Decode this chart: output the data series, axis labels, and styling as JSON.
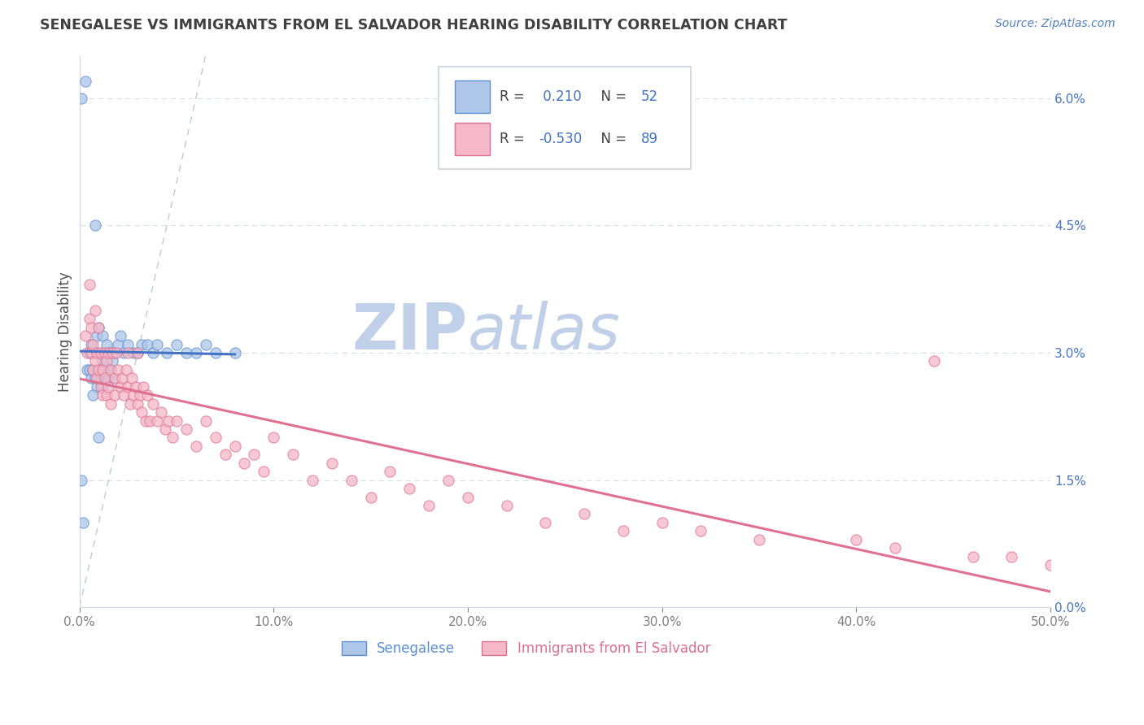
{
  "title": "SENEGALESE VS IMMIGRANTS FROM EL SALVADOR HEARING DISABILITY CORRELATION CHART",
  "source": "Source: ZipAtlas.com",
  "ylabel": "Hearing Disability",
  "xlim": [
    0.0,
    0.5
  ],
  "ylim": [
    0.0,
    0.065
  ],
  "xticklabels": [
    "0.0%",
    "10.0%",
    "20.0%",
    "30.0%",
    "40.0%",
    "50.0%"
  ],
  "xtick_vals": [
    0.0,
    0.1,
    0.2,
    0.3,
    0.4,
    0.5
  ],
  "ytick_vals": [
    0.0,
    0.015,
    0.03,
    0.045,
    0.06
  ],
  "yticklabels_right": [
    "0.0%",
    "1.5%",
    "3.0%",
    "4.5%",
    "6.0%"
  ],
  "color_senegalese_fill": "#aec6e8",
  "color_senegalese_edge": "#5b8fcf",
  "color_salvador_fill": "#f4b8c8",
  "color_salvador_edge": "#e07090",
  "color_trendline_sen": "#4472c4",
  "color_trendline_sal": "#e07090",
  "color_diag": "#b8c4d4",
  "watermark_text": "ZIP",
  "watermark_text2": "atlas",
  "watermark_color1": "#c0d0e8",
  "watermark_color2": "#c0d0e8",
  "background_color": "#ffffff",
  "grid_color": "#d8dfe8",
  "title_color": "#404040",
  "source_color": "#5080c0",
  "legend_text_color": "#404040",
  "legend_num_color": "#4472c4",
  "tick_color_right": "#4472c4",
  "tick_color_x": "#808080",
  "senegalese_x": [
    0.001,
    0.002,
    0.003,
    0.004,
    0.005,
    0.005,
    0.006,
    0.006,
    0.007,
    0.007,
    0.008,
    0.008,
    0.009,
    0.009,
    0.01,
    0.01,
    0.011,
    0.011,
    0.012,
    0.012,
    0.012,
    0.013,
    0.013,
    0.014,
    0.014,
    0.015,
    0.015,
    0.016,
    0.016,
    0.017,
    0.018,
    0.018,
    0.02,
    0.021,
    0.023,
    0.025,
    0.028,
    0.03,
    0.032,
    0.035,
    0.038,
    0.04,
    0.045,
    0.05,
    0.055,
    0.06,
    0.065,
    0.07,
    0.001,
    0.007,
    0.01,
    0.08
  ],
  "senegalese_y": [
    0.06,
    0.01,
    0.062,
    0.028,
    0.03,
    0.028,
    0.031,
    0.027,
    0.03,
    0.028,
    0.045,
    0.027,
    0.032,
    0.026,
    0.033,
    0.028,
    0.03,
    0.027,
    0.032,
    0.029,
    0.026,
    0.03,
    0.028,
    0.031,
    0.027,
    0.03,
    0.027,
    0.03,
    0.028,
    0.029,
    0.03,
    0.027,
    0.031,
    0.032,
    0.03,
    0.031,
    0.03,
    0.03,
    0.031,
    0.031,
    0.03,
    0.031,
    0.03,
    0.031,
    0.03,
    0.03,
    0.031,
    0.03,
    0.015,
    0.025,
    0.02,
    0.03
  ],
  "salvador_x": [
    0.003,
    0.004,
    0.005,
    0.005,
    0.006,
    0.006,
    0.007,
    0.007,
    0.008,
    0.008,
    0.009,
    0.009,
    0.01,
    0.01,
    0.011,
    0.011,
    0.012,
    0.012,
    0.013,
    0.013,
    0.014,
    0.014,
    0.015,
    0.015,
    0.016,
    0.016,
    0.017,
    0.018,
    0.018,
    0.019,
    0.02,
    0.021,
    0.022,
    0.023,
    0.024,
    0.025,
    0.025,
    0.026,
    0.027,
    0.028,
    0.029,
    0.03,
    0.03,
    0.031,
    0.032,
    0.033,
    0.034,
    0.035,
    0.036,
    0.038,
    0.04,
    0.042,
    0.044,
    0.046,
    0.048,
    0.05,
    0.055,
    0.06,
    0.065,
    0.07,
    0.075,
    0.08,
    0.085,
    0.09,
    0.095,
    0.1,
    0.11,
    0.12,
    0.13,
    0.14,
    0.15,
    0.16,
    0.17,
    0.18,
    0.19,
    0.2,
    0.22,
    0.24,
    0.26,
    0.28,
    0.3,
    0.32,
    0.35,
    0.4,
    0.42,
    0.44,
    0.46,
    0.48,
    0.5
  ],
  "salvador_y": [
    0.032,
    0.03,
    0.038,
    0.034,
    0.033,
    0.03,
    0.028,
    0.031,
    0.035,
    0.029,
    0.03,
    0.027,
    0.033,
    0.028,
    0.03,
    0.026,
    0.028,
    0.025,
    0.03,
    0.027,
    0.029,
    0.025,
    0.03,
    0.026,
    0.028,
    0.024,
    0.03,
    0.025,
    0.027,
    0.03,
    0.028,
    0.026,
    0.027,
    0.025,
    0.028,
    0.03,
    0.026,
    0.024,
    0.027,
    0.025,
    0.026,
    0.024,
    0.03,
    0.025,
    0.023,
    0.026,
    0.022,
    0.025,
    0.022,
    0.024,
    0.022,
    0.023,
    0.021,
    0.022,
    0.02,
    0.022,
    0.021,
    0.019,
    0.022,
    0.02,
    0.018,
    0.019,
    0.017,
    0.018,
    0.016,
    0.02,
    0.018,
    0.015,
    0.017,
    0.015,
    0.013,
    0.016,
    0.014,
    0.012,
    0.015,
    0.013,
    0.012,
    0.01,
    0.011,
    0.009,
    0.01,
    0.009,
    0.008,
    0.008,
    0.007,
    0.029,
    0.006,
    0.006,
    0.005
  ]
}
